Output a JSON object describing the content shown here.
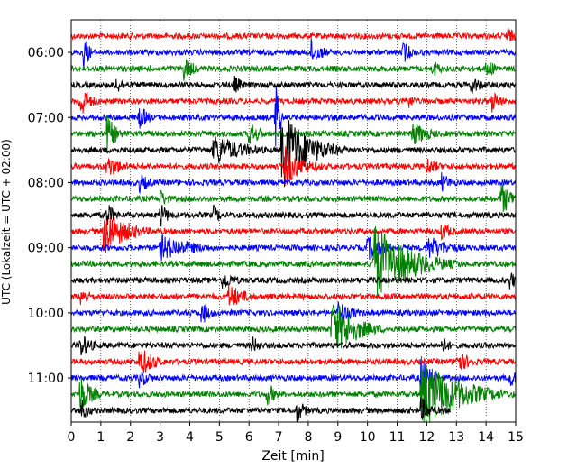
{
  "chart_data": {
    "type": "line",
    "subtype": "helicorder",
    "xlabel": "Zeit  [min]",
    "ylabel": "UTC (Lokalzeit = UTC + 02:00)",
    "xlim": [
      0,
      15
    ],
    "x_ticks": [
      "0",
      "1",
      "2",
      "3",
      "4",
      "5",
      "6",
      "7",
      "8",
      "9",
      "10",
      "11",
      "12",
      "13",
      "14",
      "15"
    ],
    "y_ticks": [
      "06:00",
      "07:00",
      "08:00",
      "09:00",
      "10:00",
      "11:00"
    ],
    "trace_interval_min": 15,
    "trace_colors": [
      "#ff0000",
      "#0000ff",
      "#008000",
      "#000000"
    ],
    "grid": "vertical-dotted",
    "traces": [
      {
        "start": "05:45",
        "end_min": 15,
        "events": [
          {
            "t": 14.7,
            "amp": 1.5,
            "dur": 0.3
          }
        ]
      },
      {
        "start": "06:00",
        "end_min": 15,
        "events": [
          {
            "t": 0.4,
            "amp": 3,
            "dur": 0.2
          },
          {
            "t": 8.1,
            "amp": 2,
            "dur": 0.4
          },
          {
            "t": 11.2,
            "amp": 1.8,
            "dur": 0.3
          }
        ]
      },
      {
        "start": "06:15",
        "end_min": 15,
        "events": [
          {
            "t": 3.8,
            "amp": 1.8,
            "dur": 0.4
          },
          {
            "t": 12.2,
            "amp": 1.5,
            "dur": 0.3
          },
          {
            "t": 14.0,
            "amp": 1.5,
            "dur": 0.4
          }
        ]
      },
      {
        "start": "06:30",
        "end_min": 15,
        "events": [
          {
            "t": 1.5,
            "amp": 1.5,
            "dur": 0.3
          },
          {
            "t": 5.5,
            "amp": 1.5,
            "dur": 0.3
          },
          {
            "t": 13.5,
            "amp": 1.5,
            "dur": 0.4
          }
        ]
      },
      {
        "start": "06:45",
        "end_min": 15,
        "events": [
          {
            "t": 0.3,
            "amp": 3,
            "dur": 0.3
          },
          {
            "t": 11.3,
            "amp": 1.5,
            "dur": 0.3
          },
          {
            "t": 14.2,
            "amp": 1.8,
            "dur": 0.3
          }
        ]
      },
      {
        "start": "07:00",
        "end_min": 15,
        "events": [
          {
            "t": 6.9,
            "amp": 8,
            "dur": 0.1
          },
          {
            "t": 2.3,
            "amp": 2,
            "dur": 0.3
          }
        ]
      },
      {
        "start": "07:15",
        "end_min": 15,
        "events": [
          {
            "t": 1.2,
            "amp": 3,
            "dur": 0.3
          },
          {
            "t": 6.0,
            "amp": 2,
            "dur": 0.4
          },
          {
            "t": 11.5,
            "amp": 2,
            "dur": 0.6
          }
        ]
      },
      {
        "start": "07:30",
        "end_min": 15,
        "events": [
          {
            "t": 4.8,
            "amp": 2.5,
            "dur": 1.0
          },
          {
            "t": 7.1,
            "amp": 6,
            "dur": 0.9
          }
        ]
      },
      {
        "start": "07:45",
        "end_min": 15,
        "events": [
          {
            "t": 1.2,
            "amp": 1.8,
            "dur": 0.6
          },
          {
            "t": 7.2,
            "amp": 3,
            "dur": 0.7
          },
          {
            "t": 12.0,
            "amp": 1.5,
            "dur": 0.4
          }
        ]
      },
      {
        "start": "08:00",
        "end_min": 15,
        "events": [
          {
            "t": 2.3,
            "amp": 1.5,
            "dur": 0.4
          },
          {
            "t": 12.5,
            "amp": 1.5,
            "dur": 0.4
          }
        ]
      },
      {
        "start": "08:15",
        "end_min": 15,
        "events": [
          {
            "t": 3.0,
            "amp": 1.5,
            "dur": 0.3
          },
          {
            "t": 14.5,
            "amp": 2.5,
            "dur": 0.5
          }
        ]
      },
      {
        "start": "08:30",
        "end_min": 15,
        "events": [
          {
            "t": 1.2,
            "amp": 2,
            "dur": 0.3
          },
          {
            "t": 3.0,
            "amp": 2,
            "dur": 0.3
          },
          {
            "t": 4.8,
            "amp": 1.5,
            "dur": 0.3
          }
        ]
      },
      {
        "start": "08:45",
        "end_min": 15,
        "events": [
          {
            "t": 1.1,
            "amp": 3.5,
            "dur": 0.8
          },
          {
            "t": 12.5,
            "amp": 1.5,
            "dur": 0.4
          }
        ]
      },
      {
        "start": "09:00",
        "end_min": 15,
        "events": [
          {
            "t": 3.0,
            "amp": 2,
            "dur": 1.2
          },
          {
            "t": 10.0,
            "amp": 2,
            "dur": 0.6
          },
          {
            "t": 12.0,
            "amp": 2,
            "dur": 0.8
          }
        ]
      },
      {
        "start": "09:15",
        "end_min": 15,
        "events": [
          {
            "t": 10.2,
            "amp": 6,
            "dur": 1.2
          }
        ]
      },
      {
        "start": "09:30",
        "end_min": 15,
        "events": [
          {
            "t": 5.1,
            "amp": 1.5,
            "dur": 0.5
          },
          {
            "t": 14.8,
            "amp": 1.5,
            "dur": 0.3
          }
        ]
      },
      {
        "start": "09:45",
        "end_min": 15,
        "events": [
          {
            "t": 0.3,
            "amp": 1.5,
            "dur": 0.4
          },
          {
            "t": 5.3,
            "amp": 2,
            "dur": 0.6
          }
        ]
      },
      {
        "start": "10:00",
        "end_min": 15,
        "events": [
          {
            "t": 4.4,
            "amp": 2,
            "dur": 0.3
          },
          {
            "t": 9.0,
            "amp": 2,
            "dur": 0.5
          }
        ]
      },
      {
        "start": "10:15",
        "end_min": 15,
        "events": [
          {
            "t": 8.8,
            "amp": 4.5,
            "dur": 0.8
          }
        ]
      },
      {
        "start": "10:30",
        "end_min": 15,
        "events": [
          {
            "t": 0.3,
            "amp": 2,
            "dur": 0.4
          },
          {
            "t": 6.1,
            "amp": 1.5,
            "dur": 0.3
          },
          {
            "t": 12.5,
            "amp": 1.5,
            "dur": 0.3
          }
        ]
      },
      {
        "start": "10:45",
        "end_min": 15,
        "events": [
          {
            "t": 2.3,
            "amp": 2.5,
            "dur": 0.5
          },
          {
            "t": 13.0,
            "amp": 1.8,
            "dur": 0.5
          }
        ]
      },
      {
        "start": "11:00",
        "end_min": 15,
        "events": [
          {
            "t": 2.3,
            "amp": 1.5,
            "dur": 0.4
          },
          {
            "t": 11.8,
            "amp": 3,
            "dur": 0.4
          },
          {
            "t": 14.8,
            "amp": 1.5,
            "dur": 0.3
          }
        ]
      },
      {
        "start": "11:15",
        "end_min": 15,
        "events": [
          {
            "t": 0.3,
            "amp": 3,
            "dur": 0.4
          },
          {
            "t": 6.6,
            "amp": 2,
            "dur": 0.3
          },
          {
            "t": 11.8,
            "amp": 5.5,
            "dur": 1.3
          }
        ]
      },
      {
        "start": "11:30",
        "end_min": 12.8,
        "events": [
          {
            "t": 0.3,
            "amp": 2,
            "dur": 0.3
          },
          {
            "t": 7.6,
            "amp": 2,
            "dur": 0.3
          },
          {
            "t": 11.8,
            "amp": 2,
            "dur": 0.4
          }
        ]
      }
    ]
  }
}
